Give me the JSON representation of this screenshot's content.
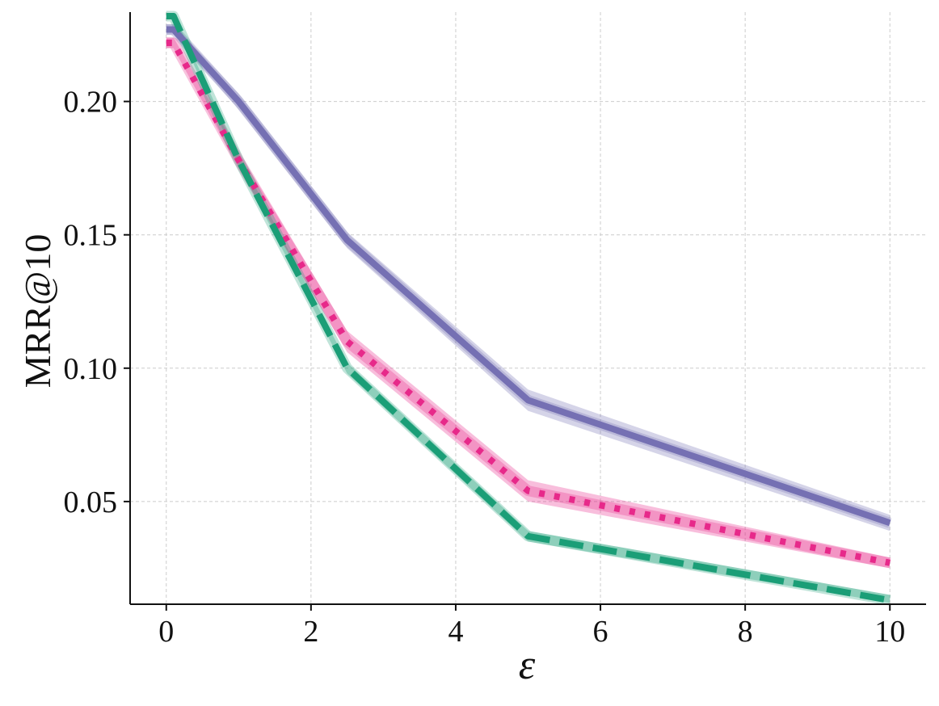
{
  "chart_data": {
    "type": "line",
    "xlabel": "ε",
    "ylabel": "MRR@10",
    "xlim": [
      -0.5,
      10.5
    ],
    "ylim": [
      0.0115,
      0.2335
    ],
    "xticks": [
      0,
      2,
      4,
      6,
      8,
      10
    ],
    "xtick_labels": [
      "0",
      "2",
      "4",
      "6",
      "8",
      "10"
    ],
    "yticks": [
      0.05,
      0.1,
      0.15,
      0.2
    ],
    "ytick_labels": [
      "0.05",
      "0.10",
      "0.15",
      "0.20"
    ],
    "grid": true,
    "series": [
      {
        "style": "solid",
        "color": "#7570b3",
        "x": [
          0,
          0.1,
          1,
          2.5,
          5,
          10
        ],
        "y": [
          0.227,
          0.227,
          0.2,
          0.148,
          0.088,
          0.042
        ],
        "y_low": [
          0.225,
          0.225,
          0.197,
          0.145,
          0.084,
          0.039
        ],
        "y_high": [
          0.229,
          0.229,
          0.203,
          0.151,
          0.092,
          0.045
        ]
      },
      {
        "style": "dotted",
        "color": "#e7298a",
        "x": [
          0,
          0.1,
          1,
          2.5,
          5,
          10
        ],
        "y": [
          0.222,
          0.222,
          0.178,
          0.11,
          0.054,
          0.027
        ],
        "y_low": [
          0.22,
          0.22,
          0.175,
          0.106,
          0.05,
          0.025
        ],
        "y_high": [
          0.224,
          0.224,
          0.181,
          0.114,
          0.058,
          0.029
        ]
      },
      {
        "style": "dashed",
        "color": "#1b9e77",
        "x": [
          0,
          0.1,
          1,
          2.5,
          5,
          10
        ],
        "y": [
          0.232,
          0.232,
          0.178,
          0.1,
          0.037,
          0.013
        ],
        "y_low": [
          0.231,
          0.231,
          0.176,
          0.098,
          0.035,
          0.012
        ],
        "y_high": [
          0.233,
          0.233,
          0.18,
          0.102,
          0.039,
          0.015
        ]
      }
    ]
  }
}
